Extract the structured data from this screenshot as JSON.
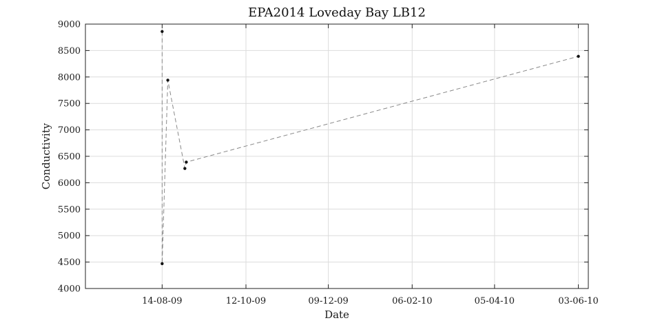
{
  "chart_data": {
    "type": "line",
    "title": "EPA2014 Loveday Bay LB12",
    "xlabel": "Date",
    "ylabel": "Conductivity",
    "ylim": [
      4000,
      9000
    ],
    "yticks": [
      4000,
      4500,
      5000,
      5500,
      6000,
      6500,
      7000,
      7500,
      8000,
      8500,
      9000
    ],
    "xlim": [
      "2009-06-21",
      "2010-06-10"
    ],
    "xticks": [
      "2009-08-14",
      "2009-10-12",
      "2009-12-09",
      "2010-02-06",
      "2010-04-05",
      "2010-06-03"
    ],
    "xtick_labels": [
      "14-08-09",
      "12-10-09",
      "09-12-09",
      "06-02-10",
      "05-04-10",
      "03-06-10"
    ],
    "grid": true,
    "series": [
      {
        "points": [
          {
            "x": "2009-08-14",
            "y": 8860
          },
          {
            "x": "2009-08-14",
            "y": 4470
          },
          {
            "x": "2009-08-18",
            "y": 7940
          },
          {
            "x": "2009-08-30",
            "y": 6270
          },
          {
            "x": "2009-08-31",
            "y": 6390
          },
          {
            "x": "2010-06-03",
            "y": 8390
          }
        ]
      }
    ]
  }
}
